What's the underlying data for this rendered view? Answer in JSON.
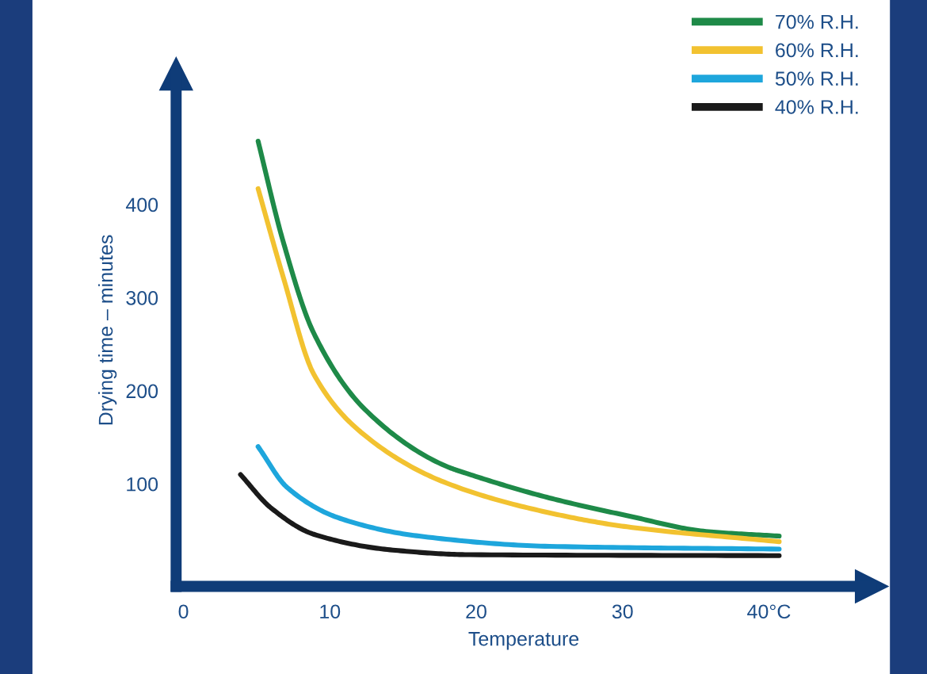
{
  "chart_data": {
    "type": "line",
    "xlabel": "Temperature",
    "ylabel": "Drying time – minutes",
    "xlim": [
      -0.5,
      47
    ],
    "ylim": [
      -10,
      540
    ],
    "xticks": [
      0,
      10,
      20,
      30,
      {
        "value": 40,
        "label": "40°C"
      }
    ],
    "yticks": [
      100,
      200,
      300,
      400
    ],
    "grid": false,
    "legend": "top right",
    "marker": "none",
    "line_style": "solid",
    "series": [
      {
        "name": "70% R.H.",
        "color": "#1e8a48",
        "x": [
          5.1,
          6.8,
          8.9,
          12.4,
          17.8,
          19.6,
          25,
          30.3,
          35.7,
          40.7
        ],
        "values": [
          468,
          361,
          262,
          180,
          120,
          110,
          85,
          66,
          49,
          44
        ]
      },
      {
        "name": "60% R.H.",
        "color": "#f2c230",
        "x": [
          5.1,
          6.8,
          8.9,
          12.4,
          17.8,
          25,
          30.3,
          40.7
        ],
        "values": [
          417,
          323,
          218,
          152,
          102,
          69,
          54,
          38
        ]
      },
      {
        "name": "50% R.H.",
        "color": "#1ea6dc",
        "x": [
          5.1,
          7.1,
          10.7,
          16.1,
          25,
          40.7
        ],
        "values": [
          140,
          96,
          63,
          44,
          33,
          30
        ]
      },
      {
        "name": "40% R.H.",
        "color": "#1a1a1a",
        "x": [
          3.9,
          6.0,
          8.9,
          14.3,
          19.6,
          40.7
        ],
        "values": [
          110,
          74,
          46,
          29,
          24,
          23
        ]
      }
    ]
  }
}
